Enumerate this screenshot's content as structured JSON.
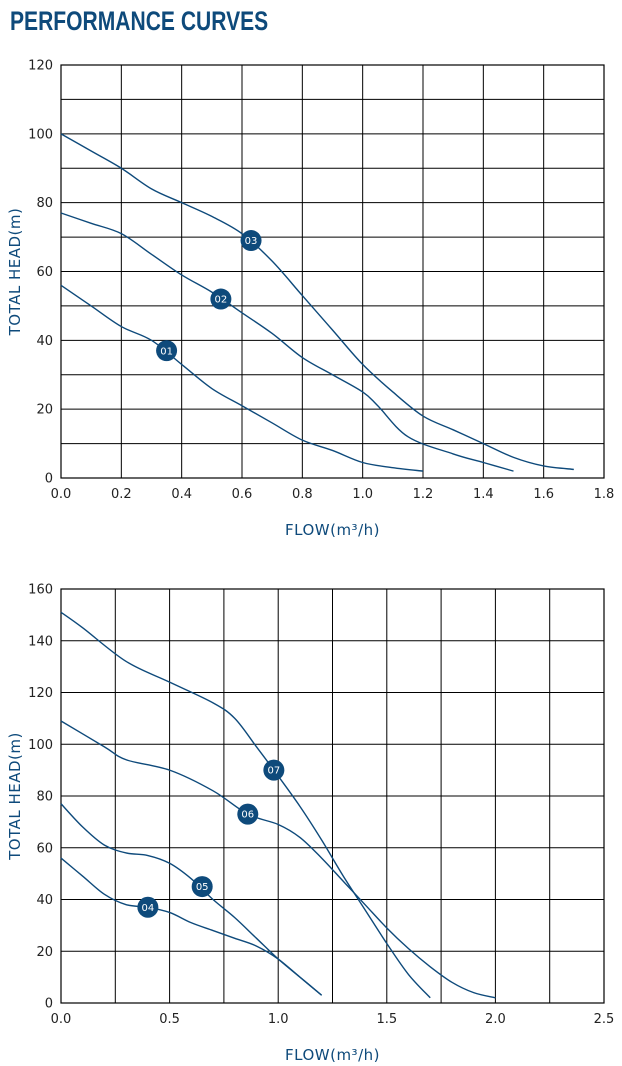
{
  "page": {
    "title": "PERFORMANCE CURVES"
  },
  "colors": {
    "curve": "#0e4a7b",
    "badge": "#0e4a7b",
    "grid": "#000000",
    "label": "#0e4a7b"
  },
  "chart_data": [
    {
      "type": "line",
      "xlabel": "FLOW(m³/h)",
      "ylabel": "TOTAL HEAD(m)",
      "xlim": [
        0,
        1.8
      ],
      "ylim": [
        0,
        120
      ],
      "xticks": [
        0,
        0.2,
        0.4,
        0.6,
        0.8,
        1.0,
        1.2,
        1.4,
        1.6,
        1.8
      ],
      "xtick_labels": [
        "0.0",
        "0.2",
        "0.4",
        "0.6",
        "0.8",
        "1.0",
        "1.2",
        "1.4",
        "1.6",
        "1.8"
      ],
      "yticks": [
        0,
        20,
        40,
        60,
        80,
        100,
        120
      ],
      "ytick_labels": [
        "0",
        "20",
        "40",
        "60",
        "80",
        "100",
        "120"
      ],
      "grid": {
        "x_step": 0.2,
        "y_step": 10
      },
      "series": [
        {
          "name": "01",
          "label_at": [
            0.35,
            37
          ],
          "points": [
            [
              0,
              56
            ],
            [
              0.1,
              50
            ],
            [
              0.2,
              44
            ],
            [
              0.3,
              40
            ],
            [
              0.4,
              33
            ],
            [
              0.5,
              26
            ],
            [
              0.6,
              21
            ],
            [
              0.7,
              16
            ],
            [
              0.8,
              11
            ],
            [
              0.9,
              8
            ],
            [
              1.0,
              4.5
            ],
            [
              1.1,
              3
            ],
            [
              1.2,
              2
            ]
          ]
        },
        {
          "name": "02",
          "label_at": [
            0.53,
            52
          ],
          "points": [
            [
              0,
              77
            ],
            [
              0.1,
              74
            ],
            [
              0.2,
              71
            ],
            [
              0.3,
              65
            ],
            [
              0.4,
              59
            ],
            [
              0.5,
              54
            ],
            [
              0.6,
              48
            ],
            [
              0.7,
              42
            ],
            [
              0.8,
              35
            ],
            [
              0.9,
              30
            ],
            [
              1.0,
              25
            ],
            [
              1.05,
              21
            ],
            [
              1.15,
              12
            ],
            [
              1.3,
              7
            ],
            [
              1.4,
              4.5
            ],
            [
              1.5,
              2
            ]
          ]
        },
        {
          "name": "03",
          "label_at": [
            0.63,
            69
          ],
          "points": [
            [
              0,
              100
            ],
            [
              0.1,
              95
            ],
            [
              0.2,
              90
            ],
            [
              0.3,
              84
            ],
            [
              0.4,
              80
            ],
            [
              0.5,
              76
            ],
            [
              0.6,
              71
            ],
            [
              0.7,
              63
            ],
            [
              0.8,
              53
            ],
            [
              0.9,
              43
            ],
            [
              1.0,
              33
            ],
            [
              1.1,
              25
            ],
            [
              1.2,
              18
            ],
            [
              1.3,
              14
            ],
            [
              1.4,
              10
            ],
            [
              1.5,
              6
            ],
            [
              1.6,
              3.5
            ],
            [
              1.7,
              2.5
            ]
          ]
        }
      ]
    },
    {
      "type": "line",
      "xlabel": "FLOW(m³/h)",
      "ylabel": "TOTAL HEAD(m)",
      "xlim": [
        0,
        2.5
      ],
      "ylim": [
        0,
        160
      ],
      "xticks": [
        0,
        0.5,
        1.0,
        1.5,
        2.0,
        2.5
      ],
      "xtick_labels": [
        "0.0",
        "0.5",
        "1.0",
        "1.5",
        "2.0",
        "2.5"
      ],
      "yticks": [
        0,
        20,
        40,
        60,
        80,
        100,
        120,
        140,
        160
      ],
      "ytick_labels": [
        "0",
        "20",
        "40",
        "60",
        "80",
        "100",
        "120",
        "140",
        "160"
      ],
      "grid": {
        "x_step": 0.25,
        "y_step": 20
      },
      "series": [
        {
          "name": "04",
          "label_at": [
            0.4,
            37
          ],
          "points": [
            [
              0,
              56
            ],
            [
              0.1,
              49
            ],
            [
              0.2,
              42
            ],
            [
              0.3,
              38
            ],
            [
              0.4,
              37
            ],
            [
              0.5,
              35
            ],
            [
              0.6,
              31
            ],
            [
              0.7,
              28
            ],
            [
              0.8,
              25
            ],
            [
              0.9,
              22
            ],
            [
              1.0,
              17
            ],
            [
              1.1,
              10
            ],
            [
              1.2,
              3
            ]
          ]
        },
        {
          "name": "05",
          "label_at": [
            0.65,
            45
          ],
          "points": [
            [
              0,
              77
            ],
            [
              0.1,
              68
            ],
            [
              0.2,
              61
            ],
            [
              0.3,
              58
            ],
            [
              0.4,
              57
            ],
            [
              0.5,
              54
            ],
            [
              0.6,
              48
            ],
            [
              0.7,
              40
            ],
            [
              0.8,
              33
            ],
            [
              0.9,
              25
            ],
            [
              1.0,
              17
            ],
            [
              1.1,
              10
            ],
            [
              1.2,
              3
            ]
          ]
        },
        {
          "name": "06",
          "label_at": [
            0.86,
            73
          ],
          "points": [
            [
              0,
              109
            ],
            [
              0.2,
              99
            ],
            [
              0.3,
              94
            ],
            [
              0.5,
              90
            ],
            [
              0.7,
              82
            ],
            [
              0.86,
              73
            ],
            [
              1.0,
              69
            ],
            [
              1.1,
              64
            ],
            [
              1.2,
              56
            ],
            [
              1.3,
              47
            ],
            [
              1.4,
              38
            ],
            [
              1.5,
              29
            ],
            [
              1.6,
              21
            ],
            [
              1.7,
              14
            ],
            [
              1.8,
              8
            ],
            [
              1.9,
              4
            ],
            [
              2.0,
              2
            ]
          ]
        },
        {
          "name": "07",
          "label_at": [
            0.98,
            90
          ],
          "points": [
            [
              0,
              151
            ],
            [
              0.1,
              145
            ],
            [
              0.3,
              132
            ],
            [
              0.5,
              124
            ],
            [
              0.7,
              116
            ],
            [
              0.8,
              110
            ],
            [
              0.9,
              99
            ],
            [
              0.98,
              90
            ],
            [
              1.1,
              76
            ],
            [
              1.2,
              63
            ],
            [
              1.3,
              49
            ],
            [
              1.4,
              36
            ],
            [
              1.5,
              23
            ],
            [
              1.6,
              11
            ],
            [
              1.7,
              2
            ]
          ]
        }
      ]
    }
  ]
}
